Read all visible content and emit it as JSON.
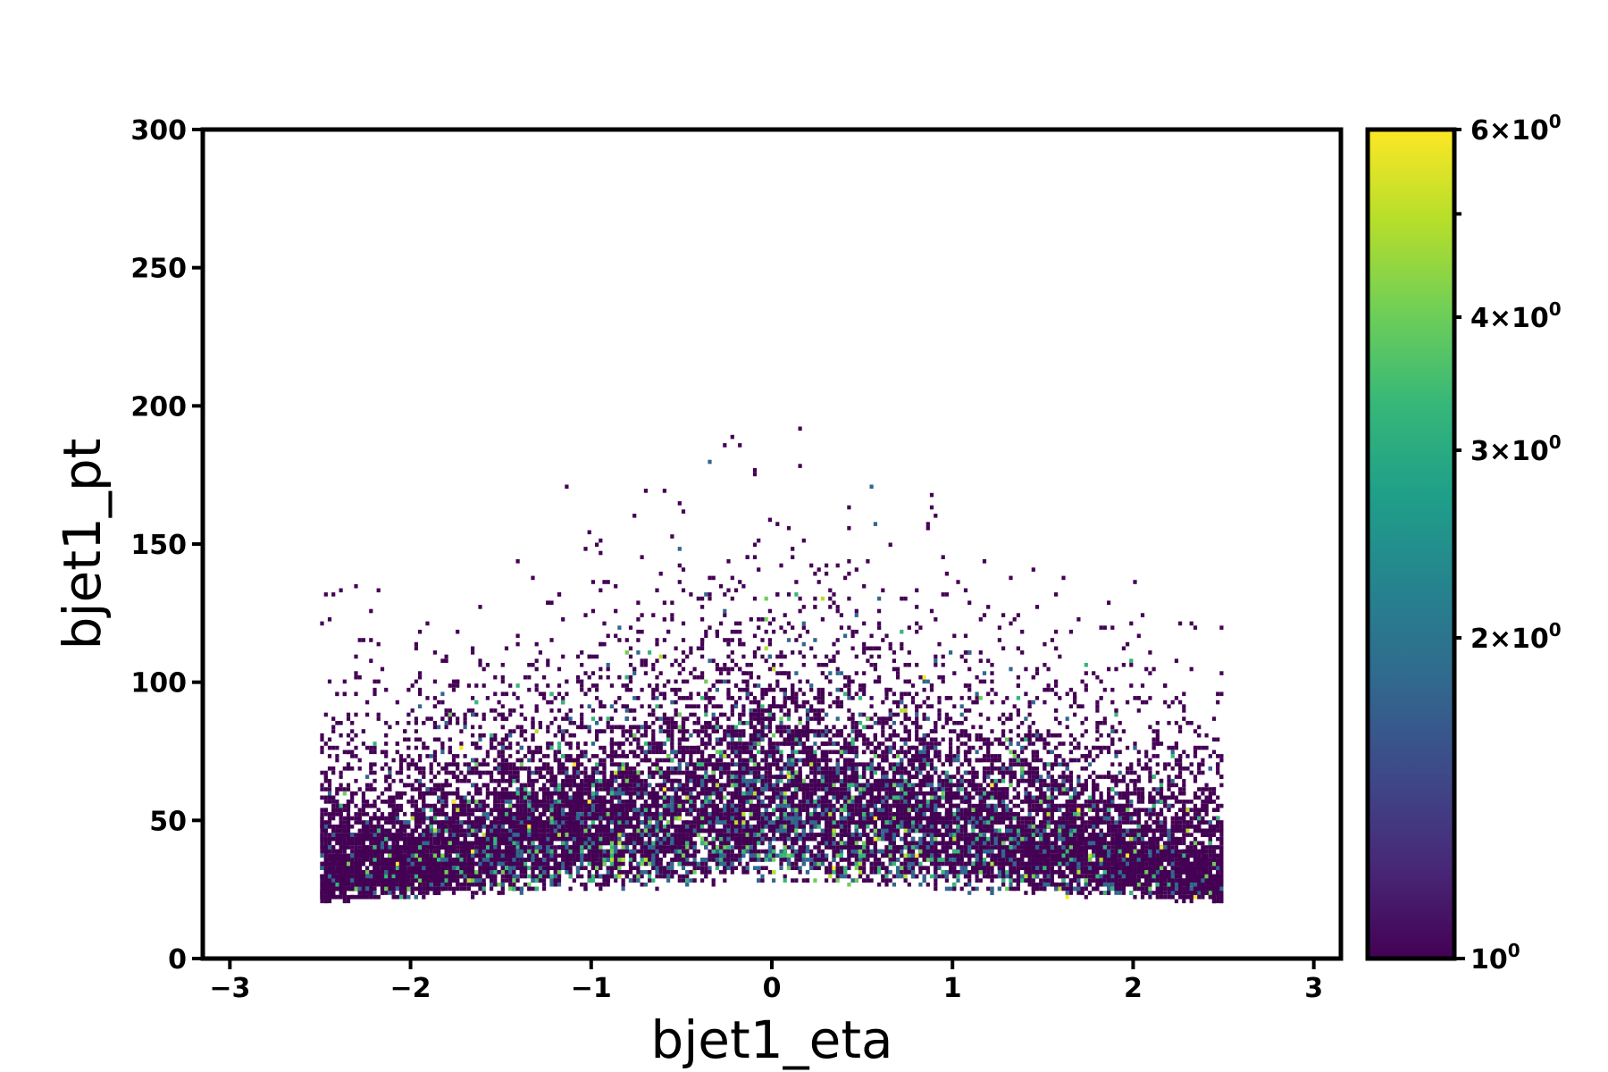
{
  "chart_data": {
    "type": "heatmap",
    "title": "",
    "xlabel": "bjet1_eta",
    "ylabel": "bjet1_pt",
    "xlim": [
      -3.15,
      3.15
    ],
    "ylim": [
      0,
      300
    ],
    "grid": false,
    "x_ticks": [
      -3,
      -2,
      -1,
      0,
      1,
      2,
      3
    ],
    "x_tick_labels": [
      "−3",
      "−2",
      "−1",
      "0",
      "1",
      "2",
      "3"
    ],
    "y_ticks": [
      0,
      50,
      100,
      150,
      200,
      250,
      300
    ],
    "y_tick_labels": [
      "0",
      "50",
      "100",
      "150",
      "200",
      "250",
      "300"
    ],
    "histogram": {
      "eta_range": [
        -2.5,
        2.5
      ],
      "eta_bins": 240,
      "pt_min": 20,
      "pt_bin_width": 1.5,
      "empty_bins": "white"
    },
    "colorbar": {
      "scale": "log",
      "range": [
        1,
        6
      ],
      "colormap": "viridis",
      "colormap_colors": [
        "#440154",
        "#482878",
        "#3e4989",
        "#31688e",
        "#26828e",
        "#1f9e89",
        "#35b779",
        "#6ece58",
        "#b5de2b",
        "#fde725"
      ],
      "major_ticks": [
        {
          "value": 1,
          "base": "10",
          "exp": "0"
        }
      ],
      "minor_ticks": [
        {
          "value": 2,
          "mant": "2",
          "times": "×",
          "base": "10",
          "exp": "0"
        },
        {
          "value": 3,
          "mant": "3",
          "times": "×",
          "base": "10",
          "exp": "0"
        },
        {
          "value": 4,
          "mant": "4",
          "times": "×",
          "base": "10",
          "exp": "0"
        },
        {
          "value": 5,
          "mant": "",
          "times": "",
          "base": "",
          "exp": ""
        },
        {
          "value": 6,
          "mant": "6",
          "times": "×",
          "base": "10",
          "exp": "0"
        }
      ]
    }
  }
}
